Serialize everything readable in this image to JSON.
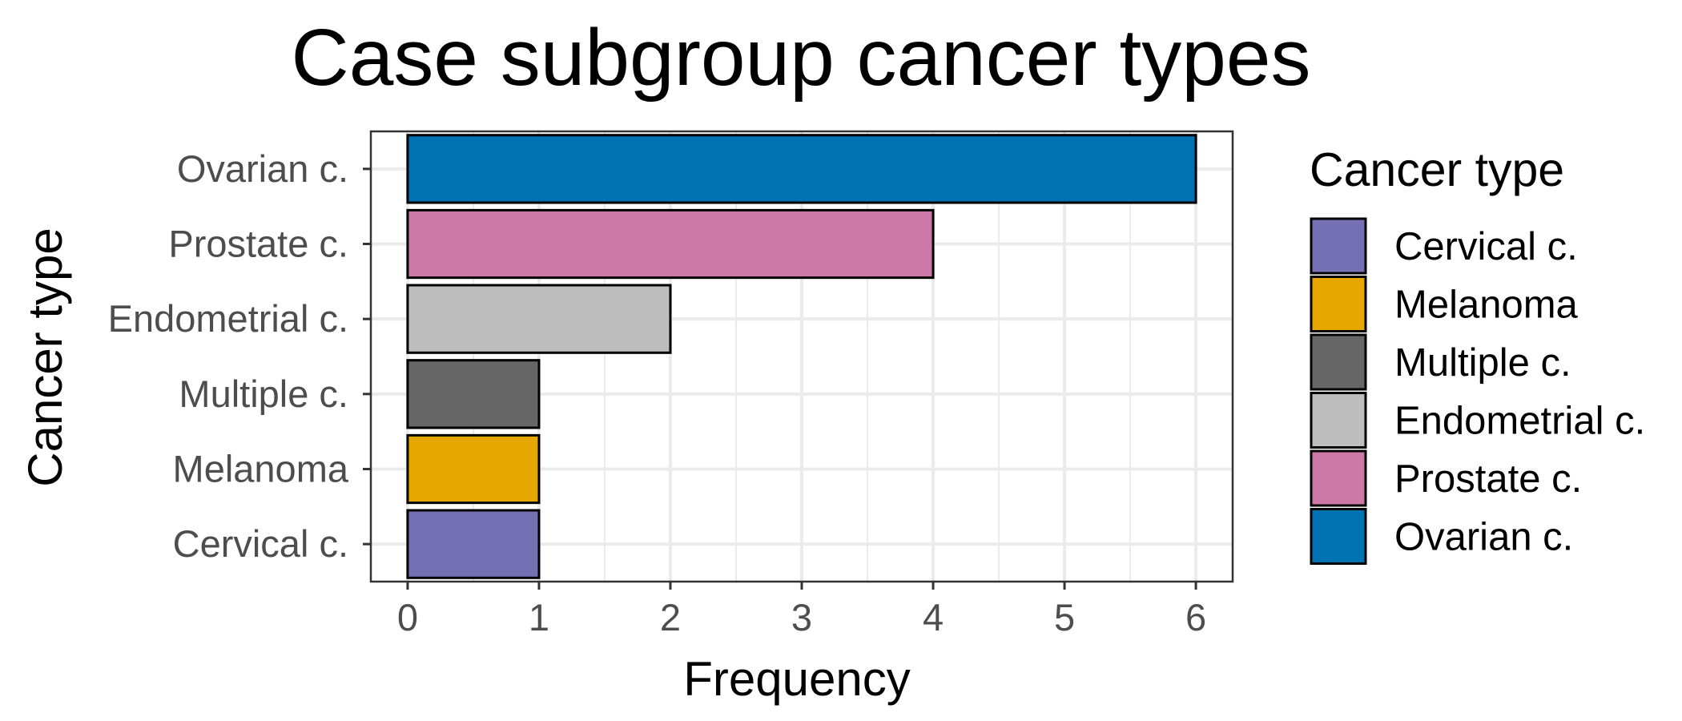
{
  "chart_data": {
    "type": "bar",
    "orientation": "horizontal",
    "title": "Case subgroup cancer types",
    "xlabel": "Frequency",
    "ylabel": "Cancer type",
    "categories": [
      "Cervical c.",
      "Melanoma",
      "Multiple c.",
      "Endometrial c.",
      "Prostate c.",
      "Ovarian c."
    ],
    "values": [
      1,
      1,
      1,
      2,
      4,
      6
    ],
    "colors": [
      "#7570b3",
      "#e6a800",
      "#666666",
      "#bebebe",
      "#cc79a7",
      "#0072b2"
    ],
    "xlim": [
      -0.28,
      6.28
    ],
    "xticks": [
      "0",
      "1",
      "2",
      "3",
      "4",
      "5",
      "6"
    ],
    "grid": true,
    "legend": {
      "title": "Cancer type",
      "position": "right",
      "entries": [
        "Cervical c.",
        "Melanoma",
        "Multiple c.",
        "Endometrial c.",
        "Prostate c.",
        "Ovarian c."
      ]
    }
  }
}
